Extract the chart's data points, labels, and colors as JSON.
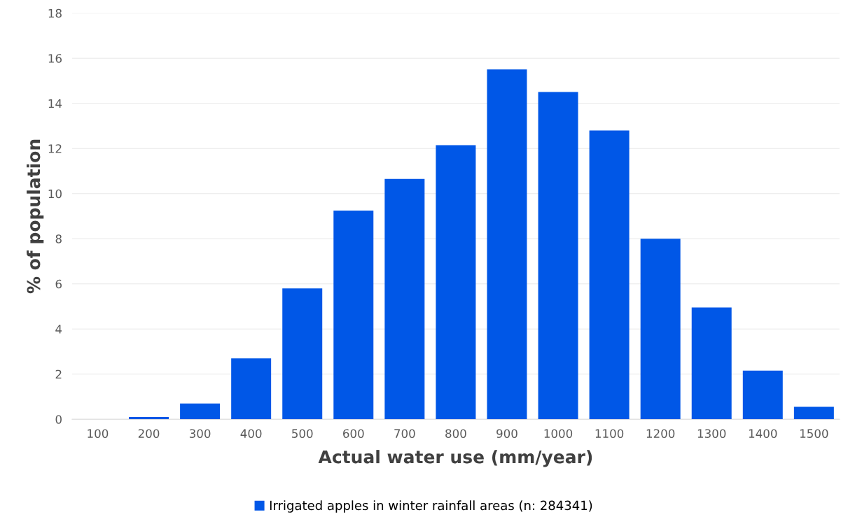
{
  "chart_data": {
    "type": "bar",
    "xlabel": "Actual water use (mm/year)",
    "ylabel": "% of population",
    "categories": [
      "100",
      "200",
      "300",
      "400",
      "500",
      "600",
      "700",
      "800",
      "900",
      "1000",
      "1100",
      "1200",
      "1300",
      "1400",
      "1500"
    ],
    "series": [
      {
        "name": "Irrigated apples in winter rainfall areas (n: 284341)",
        "color": "#0057e7",
        "values": [
          0,
          0.1,
          0.7,
          2.7,
          5.8,
          9.25,
          10.65,
          12.15,
          15.5,
          14.5,
          12.8,
          8.0,
          4.95,
          2.15,
          0.55
        ]
      }
    ],
    "ylim": [
      0,
      18
    ],
    "yticks": [
      0,
      2,
      4,
      6,
      8,
      10,
      12,
      14,
      16,
      18
    ],
    "grid": "y",
    "legend": "bottom"
  }
}
